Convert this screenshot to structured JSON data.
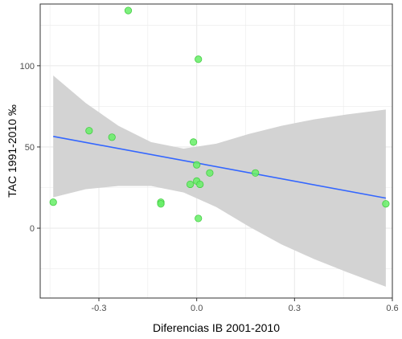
{
  "chart_data": {
    "type": "scatter",
    "title": "",
    "xlabel": "Diferencias IB 2001-2010",
    "ylabel": "TAC 1991-2010 ‰",
    "xlim": [
      -0.48,
      0.6
    ],
    "ylim": [
      -43,
      138
    ],
    "x_ticks": [
      -0.3,
      0.0,
      0.3,
      0.6
    ],
    "x_tick_labels": [
      "-0.3",
      "0.0",
      "0.3",
      "0.6"
    ],
    "y_ticks": [
      0,
      50,
      100
    ],
    "y_tick_labels": [
      "0",
      "50",
      "100"
    ],
    "grid": true,
    "points": [
      {
        "x": -0.44,
        "y": 16
      },
      {
        "x": -0.33,
        "y": 60
      },
      {
        "x": -0.26,
        "y": 56
      },
      {
        "x": -0.21,
        "y": 134
      },
      {
        "x": -0.11,
        "y": 16
      },
      {
        "x": -0.11,
        "y": 15
      },
      {
        "x": -0.02,
        "y": 27
      },
      {
        "x": -0.01,
        "y": 53
      },
      {
        "x": 0.0,
        "y": 39
      },
      {
        "x": 0.0,
        "y": 29
      },
      {
        "x": 0.005,
        "y": 104
      },
      {
        "x": 0.01,
        "y": 27
      },
      {
        "x": 0.005,
        "y": 6
      },
      {
        "x": 0.04,
        "y": 34
      },
      {
        "x": 0.18,
        "y": 34
      },
      {
        "x": 0.58,
        "y": 15
      }
    ],
    "regression_line": {
      "x": [
        -0.44,
        0.58
      ],
      "y": [
        56.5,
        18.5
      ]
    },
    "confidence_band": {
      "x": [
        -0.44,
        -0.34,
        -0.24,
        -0.14,
        -0.04,
        0.06,
        0.16,
        0.26,
        0.36,
        0.46,
        0.58
      ],
      "upper": [
        94,
        77,
        63,
        53,
        49,
        52,
        58,
        63,
        67,
        70,
        73
      ],
      "lower": [
        19,
        24,
        26,
        26,
        22,
        13,
        1,
        -10,
        -19,
        -27,
        -36
      ]
    },
    "colors": {
      "point": "#66ee66",
      "point_stroke": "#44cc44",
      "line": "#3366ff",
      "band": "#d3d3d3",
      "grid": "#ebebeb",
      "panel_border": "#333333"
    }
  }
}
